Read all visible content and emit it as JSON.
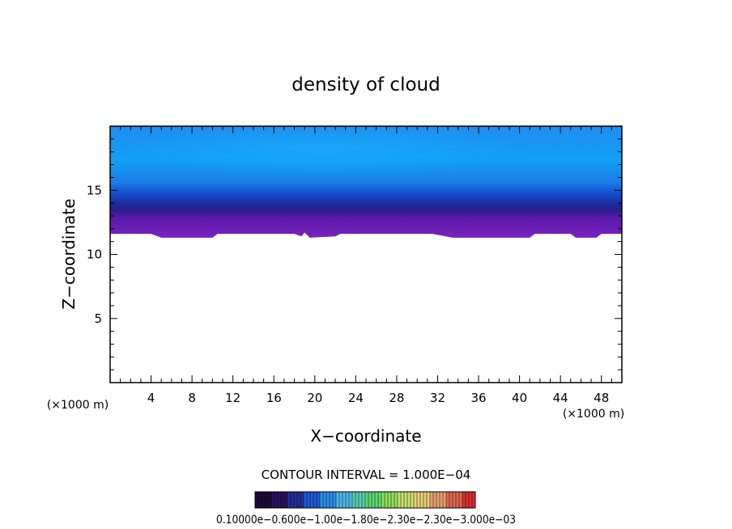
{
  "chart_data": {
    "type": "heatmap",
    "title": "density of cloud",
    "xlabel": "X−coordinate",
    "ylabel": "Z−coordinate",
    "x_unit_left": "(×1000 m)",
    "x_unit_right": "(×1000 m)",
    "xlim": [
      0,
      50
    ],
    "ylim": [
      0,
      20
    ],
    "x_ticks": [
      4,
      8,
      12,
      16,
      20,
      24,
      28,
      32,
      36,
      40,
      44,
      48
    ],
    "y_ticks": [
      5,
      10,
      15
    ],
    "cloud_layer": {
      "z_top": 20,
      "z_core": 12.6,
      "cloud_base_by_x": [
        {
          "x": 0,
          "z": 11.6
        },
        {
          "x": 4,
          "z": 11.6
        },
        {
          "x": 5,
          "z": 11.3
        },
        {
          "x": 10,
          "z": 11.3
        },
        {
          "x": 10.5,
          "z": 11.6
        },
        {
          "x": 18,
          "z": 11.6
        },
        {
          "x": 18.7,
          "z": 11.4
        },
        {
          "x": 19,
          "z": 11.7
        },
        {
          "x": 19.5,
          "z": 11.3
        },
        {
          "x": 22,
          "z": 11.4
        },
        {
          "x": 22.5,
          "z": 11.6
        },
        {
          "x": 31.5,
          "z": 11.6
        },
        {
          "x": 33.5,
          "z": 11.3
        },
        {
          "x": 41,
          "z": 11.3
        },
        {
          "x": 41.5,
          "z": 11.6
        },
        {
          "x": 45,
          "z": 11.6
        },
        {
          "x": 45.5,
          "z": 11.3
        },
        {
          "x": 47.5,
          "z": 11.3
        },
        {
          "x": 48,
          "z": 11.6
        },
        {
          "x": 50,
          "z": 11.6
        }
      ]
    },
    "contour_interval_text": "CONTOUR INTERVAL = 1.000E−04",
    "colorbar": {
      "labels_text": "0.10000e−0.600e−1.00e−1.80e−2.30e−2.30e−3.000e−03",
      "colors": [
        "#1a0a3a",
        "#2a1060",
        "#222f9a",
        "#1f5ad8",
        "#2c8ee8",
        "#4fb8e8",
        "#58d0b0",
        "#5fd870",
        "#8fe060",
        "#c8e070",
        "#e8d078",
        "#e8a070",
        "#e06850",
        "#d83030"
      ]
    }
  }
}
